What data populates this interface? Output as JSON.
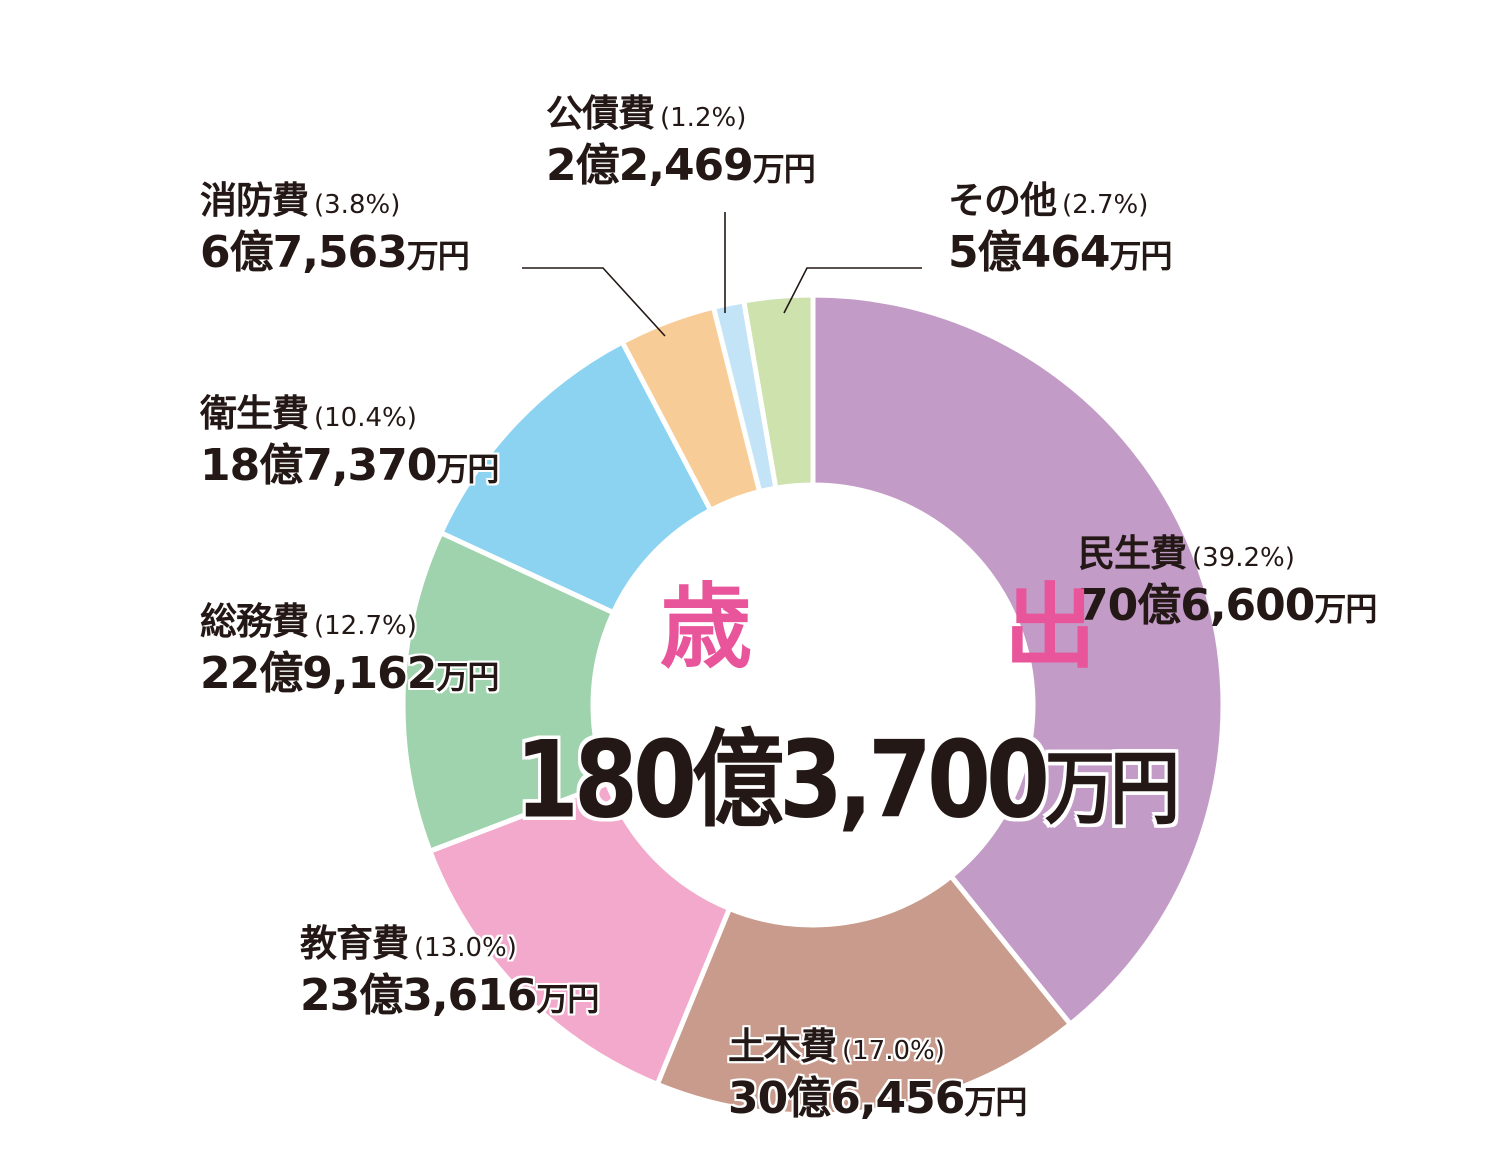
{
  "chart_data": {
    "type": "pie",
    "variant": "donut",
    "title": "歳出",
    "total": "180億3,700万円",
    "total_value_man_yen": 1803700,
    "categories": [
      "民生費",
      "土木費",
      "教育費",
      "総務費",
      "衛生費",
      "消防費",
      "公債費",
      "その他"
    ],
    "percentages": [
      39.2,
      17.0,
      13.0,
      12.7,
      10.4,
      3.8,
      1.2,
      2.7
    ],
    "values_man_yen": [
      706600,
      306456,
      233616,
      229162,
      187370,
      67563,
      22469,
      50464
    ],
    "series": [
      {
        "name": "民生費",
        "percent": 39.2,
        "percent_label": "(39.2%)",
        "amount_label": "70億6,600",
        "unit": "万円",
        "color": "#c39bc7"
      },
      {
        "name": "土木費",
        "percent": 17.0,
        "percent_label": "(17.0%)",
        "amount_label": "30億6,456",
        "unit": "万円",
        "color": "#c99b8c"
      },
      {
        "name": "教育費",
        "percent": 13.0,
        "percent_label": "(13.0%)",
        "amount_label": "23億3,616",
        "unit": "万円",
        "color": "#f2a9cb"
      },
      {
        "name": "総務費",
        "percent": 12.7,
        "percent_label": "(12.7%)",
        "amount_label": "22億9,162",
        "unit": "万円",
        "color": "#9fd3ad"
      },
      {
        "name": "衛生費",
        "percent": 10.4,
        "percent_label": "(10.4%)",
        "amount_label": "18億7,370",
        "unit": "万円",
        "color": "#8cd3f2"
      },
      {
        "name": "消防費",
        "percent": 3.8,
        "percent_label": "(3.8%)",
        "amount_label": "6億7,563",
        "unit": "万円",
        "color": "#f8cc96"
      },
      {
        "name": "公債費",
        "percent": 1.2,
        "percent_label": "(1.2%)",
        "amount_label": "2億2,469",
        "unit": "万円",
        "color": "#c3e4f6"
      },
      {
        "name": "その他",
        "percent": 2.7,
        "percent_label": "(2.7%)",
        "amount_label": "5億464",
        "unit": "万円",
        "color": "#cde2ad"
      }
    ],
    "start_angle": "12 o'clock",
    "direction": "clockwise",
    "legend": "none (direct labels)",
    "center_title_color": "#e8559a"
  },
  "center": {
    "title": "歳　出",
    "total_number": "180億3,700",
    "total_unit": "万円"
  }
}
